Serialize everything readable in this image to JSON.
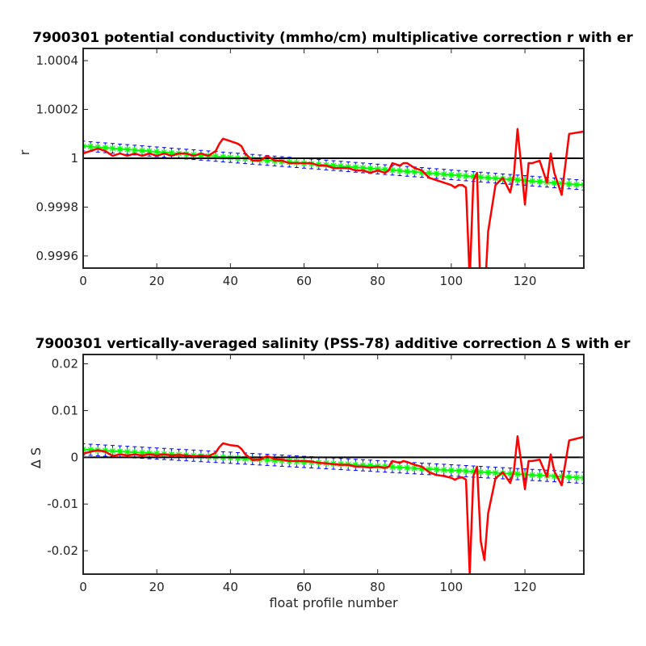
{
  "figure": {
    "colors": {
      "fit": "#00ff00",
      "fit_marker": "#00ff00",
      "error": "#0000ff",
      "data": "#ff0000",
      "reference": "#000000",
      "axes": "#262626"
    }
  },
  "chart_data": [
    {
      "type": "line",
      "title": "7900301 potential conductivity (mmho/cm) multiplicative correction r with er",
      "xlabel": "",
      "ylabel": "r",
      "xlim": [
        0,
        136
      ],
      "ylim": [
        0.99955,
        1.00045
      ],
      "xticks": [
        0,
        20,
        40,
        60,
        80,
        100,
        120
      ],
      "xtick_labels": [
        "0",
        "20",
        "40",
        "60",
        "80",
        "100",
        "120"
      ],
      "yticks": [
        0.9996,
        0.9998,
        1,
        1.0002,
        1.0004
      ],
      "ytick_labels": [
        "0.9996",
        "0.9998",
        "1",
        "1.0002",
        "1.0004"
      ],
      "reference_y": 1,
      "fit": {
        "x_start": 0,
        "x_end": 136,
        "y_start": 1.00005,
        "y_end": 0.99989,
        "error_halfwidth": 2e-05
      },
      "series": {
        "x": [
          0,
          2,
          4,
          6,
          8,
          10,
          12,
          14,
          16,
          18,
          20,
          22,
          24,
          26,
          28,
          30,
          32,
          34,
          36,
          37,
          38,
          40,
          42,
          43,
          44,
          46,
          48,
          50,
          52,
          54,
          56,
          58,
          60,
          62,
          64,
          66,
          68,
          70,
          72,
          74,
          76,
          78,
          80,
          82,
          83,
          84,
          86,
          87,
          88,
          90,
          92,
          94,
          96,
          98,
          100,
          101,
          102,
          103,
          104,
          105,
          106,
          107,
          108,
          109,
          110,
          112,
          114,
          116,
          117,
          118,
          120,
          121,
          122,
          124,
          126,
          127,
          128,
          130,
          132,
          136
        ],
        "y": [
          1.00002,
          1.00003,
          1.00004,
          1.00003,
          1.00001,
          1.00002,
          1.00001,
          1.00002,
          1.00001,
          1.00002,
          1.00001,
          1.00002,
          1.00001,
          1.00002,
          1.00002,
          1.00001,
          1.00002,
          1.00001,
          1.00003,
          1.00006,
          1.00008,
          1.00007,
          1.00006,
          1.00005,
          1.00002,
          0.99999,
          0.99999,
          1.00001,
          0.99999,
          0.99999,
          0.99998,
          0.99998,
          0.99998,
          0.99998,
          0.99997,
          0.99997,
          0.99996,
          0.99996,
          0.99996,
          0.99995,
          0.99995,
          0.99994,
          0.99995,
          0.99994,
          0.99995,
          0.99998,
          0.99997,
          0.99998,
          0.99998,
          0.99996,
          0.99995,
          0.99992,
          0.99991,
          0.9999,
          0.99989,
          0.99988,
          0.99989,
          0.99989,
          0.99988,
          0.9995,
          0.99991,
          0.99994,
          0.99939,
          0.99941,
          0.9997,
          0.99989,
          0.99992,
          0.99986,
          0.99993,
          1.00012,
          0.99981,
          0.99998,
          0.99998,
          0.99999,
          0.9999,
          1.00002,
          0.99994,
          0.99985,
          1.0001,
          1.00011
        ]
      }
    },
    {
      "type": "line",
      "title": "7900301 vertically-averaged salinity (PSS-78) additive correction ∆ S with er",
      "xlabel": "float profile number",
      "ylabel": "∆ S",
      "xlim": [
        0,
        136
      ],
      "ylim": [
        -0.025,
        0.022
      ],
      "xticks": [
        0,
        20,
        40,
        60,
        80,
        100,
        120
      ],
      "xtick_labels": [
        "0",
        "20",
        "40",
        "60",
        "80",
        "100",
        "120"
      ],
      "yticks": [
        -0.02,
        -0.01,
        0,
        0.01,
        0.02
      ],
      "ytick_labels": [
        "-0.02",
        "-0.01",
        "0",
        "0.01",
        "0.02"
      ],
      "reference_y": 0,
      "fit": {
        "x_start": 0,
        "x_end": 136,
        "y_start": 0.0017,
        "y_end": -0.0044,
        "error_halfwidth": 0.0012
      },
      "series": {
        "x": [
          0,
          2,
          4,
          6,
          8,
          10,
          12,
          14,
          16,
          18,
          20,
          22,
          24,
          26,
          28,
          30,
          32,
          34,
          36,
          37,
          38,
          40,
          42,
          43,
          44,
          46,
          48,
          50,
          52,
          54,
          56,
          58,
          60,
          62,
          64,
          66,
          68,
          70,
          72,
          74,
          76,
          78,
          80,
          82,
          83,
          84,
          86,
          87,
          88,
          90,
          92,
          94,
          96,
          98,
          100,
          101,
          102,
          103,
          104,
          105,
          106,
          107,
          108,
          109,
          110,
          112,
          114,
          116,
          117,
          118,
          120,
          121,
          122,
          124,
          126,
          127,
          128,
          130,
          132,
          136
        ],
        "y": [
          0.0008,
          0.0012,
          0.0015,
          0.0012,
          0.0003,
          0.0006,
          0.0004,
          0.0006,
          0.0004,
          0.0006,
          0.0004,
          0.0006,
          0.0004,
          0.0005,
          0.0004,
          0.0002,
          0.0004,
          0.0002,
          0.001,
          0.0022,
          0.003,
          0.0026,
          0.0024,
          0.0018,
          0.0007,
          -0.0006,
          -0.0005,
          0.0003,
          -0.0004,
          -0.0005,
          -0.0008,
          -0.0008,
          -0.0008,
          -0.0009,
          -0.0012,
          -0.0013,
          -0.0015,
          -0.0016,
          -0.0016,
          -0.002,
          -0.002,
          -0.0022,
          -0.002,
          -0.0023,
          -0.002,
          -0.0008,
          -0.0012,
          -0.0008,
          -0.001,
          -0.0016,
          -0.002,
          -0.0032,
          -0.0038,
          -0.004,
          -0.0044,
          -0.0048,
          -0.0044,
          -0.0043,
          -0.0048,
          -0.025,
          -0.004,
          -0.002,
          -0.018,
          -0.022,
          -0.012,
          -0.0045,
          -0.0032,
          -0.0055,
          -0.003,
          0.0045,
          -0.0068,
          -0.0008,
          -0.0008,
          -0.0005,
          -0.0042,
          0.0006,
          -0.003,
          -0.006,
          0.0036,
          0.0044
        ]
      }
    }
  ]
}
